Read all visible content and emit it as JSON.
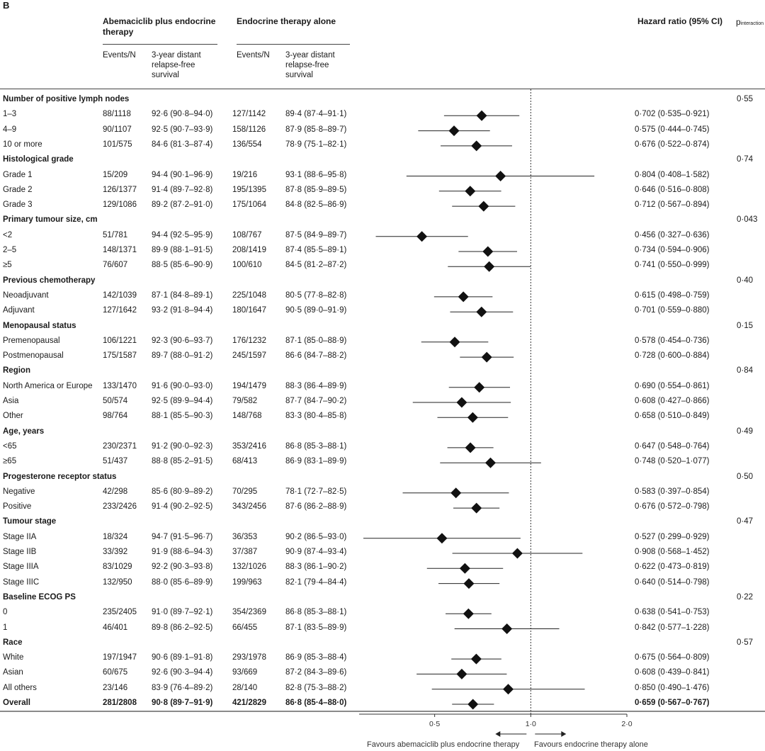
{
  "panel_label": "B",
  "header": {
    "arm1": "Abemaciclib plus endocrine therapy",
    "arm2": "Endocrine therapy alone",
    "events_n": "Events/N",
    "survival": "3-year distant relapse-free survival",
    "hr": "Hazard ratio (95% CI)",
    "p_main": "p",
    "p_sub": "interaction"
  },
  "footer": {
    "favours_left": "Favours abemaciclib plus endocrine therapy",
    "favours_right": "Favours endocrine therapy alone"
  },
  "chart_data": {
    "type": "forest",
    "xlabel": "",
    "xlim": [
      0.29,
      2.0
    ],
    "xscale": "log",
    "reference_line": 1.0,
    "ticks": [
      {
        "value": 0.5,
        "label": "0·5"
      },
      {
        "value": 1.0,
        "label": "1·0"
      },
      {
        "value": 2.0,
        "label": "2·0"
      }
    ],
    "rows": [
      {
        "type": "group",
        "label": "Number of positive lymph nodes",
        "p": "0·55"
      },
      {
        "type": "item",
        "label": "1–3",
        "e1": "88/1118",
        "s1": "92·6 (90·8–94·0)",
        "e2": "127/1142",
        "s2": "89·4 (87·4–91·1)",
        "hr": 0.702,
        "lo": 0.535,
        "hi": 0.921,
        "hr_text": "0·702 (0·535–0·921)"
      },
      {
        "type": "item",
        "label": "4–9",
        "e1": "90/1107",
        "s1": "92·5 (90·7–93·9)",
        "e2": "158/1126",
        "s2": "87·9 (85·8–89·7)",
        "hr": 0.575,
        "lo": 0.444,
        "hi": 0.745,
        "hr_text": "0·575 (0·444–0·745)"
      },
      {
        "type": "item",
        "label": "10 or more",
        "e1": "101/575",
        "s1": "84·6 (81·3–87·4)",
        "e2": "136/554",
        "s2": "78·9 (75·1–82·1)",
        "hr": 0.676,
        "lo": 0.522,
        "hi": 0.874,
        "hr_text": "0·676 (0·522–0·874)"
      },
      {
        "type": "group",
        "label": "Histological grade",
        "p": "0·74"
      },
      {
        "type": "item",
        "label": "Grade 1",
        "e1": "15/209",
        "s1": "94·4 (90·1–96·9)",
        "e2": "19/216",
        "s2": "93·1 (88·6–95·8)",
        "hr": 0.804,
        "lo": 0.408,
        "hi": 1.582,
        "hr_text": "0·804 (0·408–1·582)"
      },
      {
        "type": "item",
        "label": "Grade 2",
        "e1": "126/1377",
        "s1": "91·4 (89·7–92·8)",
        "e2": "195/1395",
        "s2": "87·8 (85·9–89·5)",
        "hr": 0.646,
        "lo": 0.516,
        "hi": 0.808,
        "hr_text": "0·646 (0·516–0·808)"
      },
      {
        "type": "item",
        "label": "Grade 3",
        "e1": "129/1086",
        "s1": "89·2 (87·2–91·0)",
        "e2": "175/1064",
        "s2": "84·8 (82·5–86·9)",
        "hr": 0.712,
        "lo": 0.567,
        "hi": 0.894,
        "hr_text": "0·712 (0·567–0·894)"
      },
      {
        "type": "group",
        "label": "Primary tumour size, cm",
        "p": "0·043"
      },
      {
        "type": "item",
        "label": "<2",
        "e1": "51/781",
        "s1": "94·4 (92·5–95·9)",
        "e2": "108/767",
        "s2": "87·5 (84·9–89·7)",
        "hr": 0.456,
        "lo": 0.327,
        "hi": 0.636,
        "hr_text": "0·456 (0·327–0·636)"
      },
      {
        "type": "item",
        "label": "2–5",
        "e1": "148/1371",
        "s1": "89·9 (88·1–91·5)",
        "e2": "208/1419",
        "s2": "87·4 (85·5–89·1)",
        "hr": 0.734,
        "lo": 0.594,
        "hi": 0.906,
        "hr_text": "0·734 (0·594–0·906)"
      },
      {
        "type": "item",
        "label": "≥5",
        "e1": "76/607",
        "s1": "88·5 (85·6–90·9)",
        "e2": "100/610",
        "s2": "84·5 (81·2–87·2)",
        "hr": 0.741,
        "lo": 0.55,
        "hi": 0.999,
        "hr_text": "0·741 (0·550–0·999)"
      },
      {
        "type": "group",
        "label": "Previous chemotherapy",
        "p": "0·40"
      },
      {
        "type": "item",
        "label": "Neoadjuvant",
        "e1": "142/1039",
        "s1": "87·1 (84·8–89·1)",
        "e2": "225/1048",
        "s2": "80·5 (77·8–82·8)",
        "hr": 0.615,
        "lo": 0.498,
        "hi": 0.759,
        "hr_text": "0·615 (0·498–0·759)"
      },
      {
        "type": "item",
        "label": "Adjuvant",
        "e1": "127/1642",
        "s1": "93·2 (91·8–94·4)",
        "e2": "180/1647",
        "s2": "90·5 (89·0–91·9)",
        "hr": 0.701,
        "lo": 0.559,
        "hi": 0.88,
        "hr_text": "0·701 (0·559–0·880)"
      },
      {
        "type": "group",
        "label": "Menopausal status",
        "p": "0·15"
      },
      {
        "type": "item",
        "label": "Premenopausal",
        "e1": "106/1221",
        "s1": "92·3 (90·6–93·7)",
        "e2": "176/1232",
        "s2": "87·1 (85·0–88·9)",
        "hr": 0.578,
        "lo": 0.454,
        "hi": 0.736,
        "hr_text": "0·578 (0·454–0·736)"
      },
      {
        "type": "item",
        "label": "Postmenopausal",
        "e1": "175/1587",
        "s1": "89·7 (88·0–91·2)",
        "e2": "245/1597",
        "s2": "86·6 (84·7–88·2)",
        "hr": 0.728,
        "lo": 0.6,
        "hi": 0.884,
        "hr_text": "0·728 (0·600–0·884)"
      },
      {
        "type": "group",
        "label": "Region",
        "p": "0·84"
      },
      {
        "type": "item",
        "label": "North America or Europe",
        "e1": "133/1470",
        "s1": "91·6 (90·0–93·0)",
        "e2": "194/1479",
        "s2": "88·3 (86·4–89·9)",
        "hr": 0.69,
        "lo": 0.554,
        "hi": 0.861,
        "hr_text": "0·690 (0·554–0·861)"
      },
      {
        "type": "item",
        "label": "Asia",
        "e1": "50/574",
        "s1": "92·5 (89·9–94·4)",
        "e2": "79/582",
        "s2": "87·7 (84·7–90·2)",
        "hr": 0.608,
        "lo": 0.427,
        "hi": 0.866,
        "hr_text": "0·608 (0·427–0·866)"
      },
      {
        "type": "item",
        "label": "Other",
        "e1": "98/764",
        "s1": "88·1 (85·5–90·3)",
        "e2": "148/768",
        "s2": "83·3 (80·4–85·8)",
        "hr": 0.658,
        "lo": 0.51,
        "hi": 0.849,
        "hr_text": "0·658 (0·510–0·849)"
      },
      {
        "type": "group",
        "label": "Age, years",
        "p": "0·49"
      },
      {
        "type": "item",
        "label": "<65",
        "e1": "230/2371",
        "s1": "91·2 (90·0–92·3)",
        "e2": "353/2416",
        "s2": "86·8 (85·3–88·1)",
        "hr": 0.647,
        "lo": 0.548,
        "hi": 0.764,
        "hr_text": "0·647 (0·548–0·764)"
      },
      {
        "type": "item",
        "label": "≥65",
        "e1": "51/437",
        "s1": "88·8 (85·2–91·5)",
        "e2": "68/413",
        "s2": "86·9 (83·1–89·9)",
        "hr": 0.748,
        "lo": 0.52,
        "hi": 1.077,
        "hr_text": "0·748 (0·520–1·077)"
      },
      {
        "type": "group",
        "label": "Progesterone receptor status",
        "p": "0·50"
      },
      {
        "type": "item",
        "label": "Negative",
        "e1": "42/298",
        "s1": "85·6 (80·9–89·2)",
        "e2": "70/295",
        "s2": "78·1 (72·7–82·5)",
        "hr": 0.583,
        "lo": 0.397,
        "hi": 0.854,
        "hr_text": "0·583 (0·397–0·854)"
      },
      {
        "type": "item",
        "label": "Positive",
        "e1": "233/2426",
        "s1": "91·4 (90·2–92·5)",
        "e2": "343/2456",
        "s2": "87·6 (86·2–88·9)",
        "hr": 0.676,
        "lo": 0.572,
        "hi": 0.798,
        "hr_text": "0·676 (0·572–0·798)"
      },
      {
        "type": "group",
        "label": "Tumour stage",
        "p": "0·47"
      },
      {
        "type": "item",
        "label": "Stage IIA",
        "e1": "18/324",
        "s1": "94·7 (91·5–96·7)",
        "e2": "36/353",
        "s2": "90·2 (86·5–93·0)",
        "hr": 0.527,
        "lo": 0.299,
        "hi": 0.929,
        "hr_text": "0·527 (0·299–0·929)"
      },
      {
        "type": "item",
        "label": "Stage IIB",
        "e1": "33/392",
        "s1": "91·9 (88·6–94·3)",
        "e2": "37/387",
        "s2": "90·9 (87·4–93·4)",
        "hr": 0.908,
        "lo": 0.568,
        "hi": 1.452,
        "hr_text": "0·908 (0·568–1·452)"
      },
      {
        "type": "item",
        "label": "Stage IIIA",
        "e1": "83/1029",
        "s1": "92·2 (90·3–93·8)",
        "e2": "132/1026",
        "s2": "88·3 (86·1–90·2)",
        "hr": 0.622,
        "lo": 0.473,
        "hi": 0.819,
        "hr_text": "0·622 (0·473–0·819)"
      },
      {
        "type": "item",
        "label": "Stage IIIC",
        "e1": "132/950",
        "s1": "88·0 (85·6–89·9)",
        "e2": "199/963",
        "s2": "82·1 (79·4–84·4)",
        "hr": 0.64,
        "lo": 0.514,
        "hi": 0.798,
        "hr_text": "0·640 (0·514–0·798)"
      },
      {
        "type": "group",
        "label": "Baseline ECOG PS",
        "p": "0·22"
      },
      {
        "type": "item",
        "label": "0",
        "e1": "235/2405",
        "s1": "91·0 (89·7–92·1)",
        "e2": "354/2369",
        "s2": "86·8 (85·3–88·1)",
        "hr": 0.638,
        "lo": 0.541,
        "hi": 0.753,
        "hr_text": "0·638 (0·541–0·753)"
      },
      {
        "type": "item",
        "label": "1",
        "e1": "46/401",
        "s1": "89·8 (86·2–92·5)",
        "e2": "66/455",
        "s2": "87·1 (83·5–89·9)",
        "hr": 0.842,
        "lo": 0.577,
        "hi": 1.228,
        "hr_text": "0·842 (0·577–1·228)"
      },
      {
        "type": "group",
        "label": "Race",
        "p": "0·57"
      },
      {
        "type": "item",
        "label": "White",
        "e1": "197/1947",
        "s1": "90·6 (89·1–91·8)",
        "e2": "293/1978",
        "s2": "86·9 (85·3–88·4)",
        "hr": 0.675,
        "lo": 0.564,
        "hi": 0.809,
        "hr_text": "0·675 (0·564–0·809)"
      },
      {
        "type": "item",
        "label": "Asian",
        "e1": "60/675",
        "s1": "92·6 (90·3–94·4)",
        "e2": "93/669",
        "s2": "87·2 (84·3–89·6)",
        "hr": 0.608,
        "lo": 0.439,
        "hi": 0.841,
        "hr_text": "0·608 (0·439–0·841)"
      },
      {
        "type": "item",
        "label": "All others",
        "e1": "23/146",
        "s1": "83·9 (76·4–89·2)",
        "e2": "28/140",
        "s2": "82·8 (75·3–88·2)",
        "hr": 0.85,
        "lo": 0.49,
        "hi": 1.476,
        "hr_text": "0·850 (0·490–1·476)"
      },
      {
        "type": "overall",
        "label": "Overall",
        "e1": "281/2808",
        "s1": "90·8 (89·7–91·9)",
        "e2": "421/2829",
        "s2": "86·8 (85·4–88·0)",
        "hr": 0.659,
        "lo": 0.567,
        "hi": 0.767,
        "hr_text": "0·659 (0·567–0·767)"
      }
    ]
  }
}
